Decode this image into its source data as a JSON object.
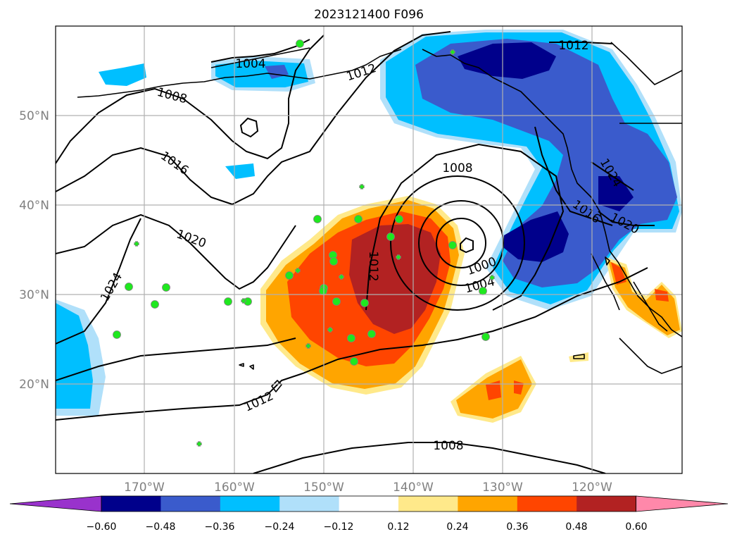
{
  "title": "2023121400 F096",
  "map": {
    "lon_range": [
      -180,
      -110
    ],
    "lat_range": [
      10,
      60
    ],
    "lat_labels": [
      "20°N",
      "30°N",
      "40°N",
      "50°N"
    ],
    "lon_labels": [
      "170°W",
      "160°W",
      "150°W",
      "140°W",
      "130°W",
      "120°W"
    ],
    "gridlines": true,
    "isobar_labels": [
      "1004",
      "1008",
      "1008",
      "1008",
      "1012",
      "1012",
      "1012",
      "1012",
      "1016",
      "1016",
      "1020",
      "1020",
      "1024",
      "1024",
      "1000",
      "1004"
    ],
    "colorbar": {
      "ticks": [
        "−0.60",
        "−0.48",
        "−0.36",
        "−0.24",
        "−0.12",
        "0.12",
        "0.24",
        "0.36",
        "0.48",
        "0.60"
      ],
      "colors": [
        "#9932cc",
        "#00008b",
        "#3a5bcc",
        "#00bfff",
        "#b0e0fa",
        "#ffffff",
        "#ffe98a",
        "#ffa500",
        "#ff4500",
        "#b22222",
        "#ff88aa"
      ]
    },
    "palette": {
      "gray": "#808080",
      "grid": "#b0b0b0",
      "marker": "#1fe81f"
    }
  }
}
